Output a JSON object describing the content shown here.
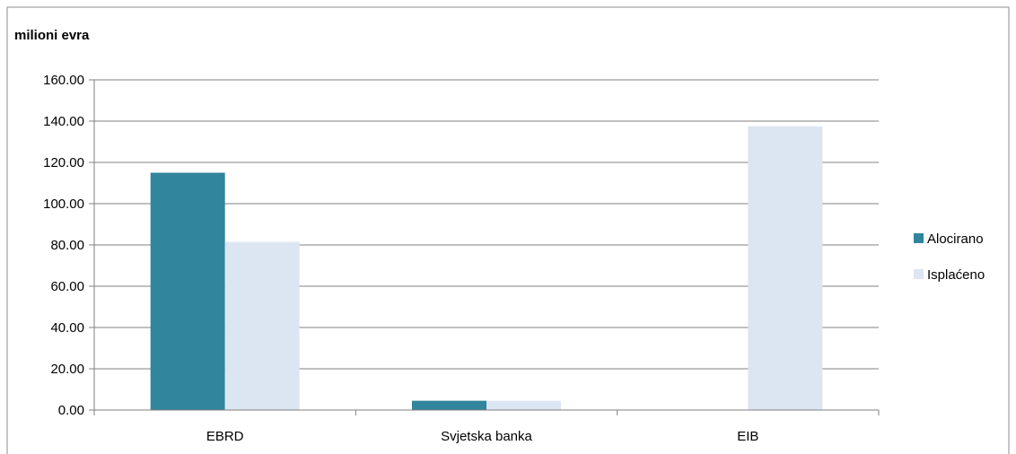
{
  "chart_data": {
    "type": "bar",
    "title": "",
    "ylabel": "milioni evra",
    "xlabel": "",
    "categories": [
      "EBRD",
      "Svjetska banka",
      "EIB"
    ],
    "series": [
      {
        "name": "Alocirano",
        "color": "#31859C",
        "values": [
          115.0,
          4.5,
          0.0
        ]
      },
      {
        "name": "Isplaćeno",
        "color": "#DCE6F2",
        "values": [
          81.5,
          4.5,
          137.5
        ]
      }
    ],
    "ylim": [
      0,
      160
    ],
    "yticks": [
      "0.00",
      "20.00",
      "40.00",
      "60.00",
      "80.00",
      "100.00",
      "120.00",
      "140.00",
      "160.00"
    ],
    "ytick_values": [
      0,
      20,
      40,
      60,
      80,
      100,
      120,
      140,
      160
    ],
    "grid": true,
    "legend_position": "right"
  }
}
